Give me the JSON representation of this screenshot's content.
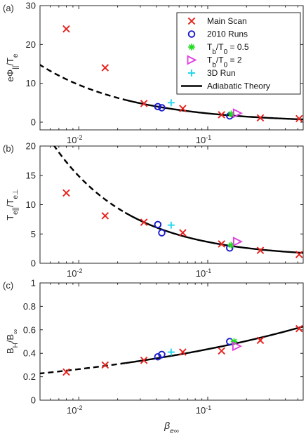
{
  "chart_data": [
    {
      "type": "scatter",
      "panel_label": "(a)",
      "ylabel": "eΦ||/Te",
      "xscale": "log",
      "xlim": [
        0.005,
        0.55
      ],
      "ylim": [
        -2,
        30
      ],
      "yticks": [
        "0",
        "10",
        "20",
        "30"
      ],
      "xticks": [
        "10^-2",
        "10^-1"
      ],
      "legend": {
        "position": "top-right",
        "entries": [
          {
            "label": "Main Scan",
            "marker": "x",
            "color": "#e8211c"
          },
          {
            "label": "2010 Runs",
            "marker": "o",
            "color": "#1a1acc"
          },
          {
            "label": "Tb/T0 = 0.5",
            "marker": "*",
            "color": "#22dd22"
          },
          {
            "label": "Tb/T0 = 2",
            "marker": ">",
            "color": "#e040e0"
          },
          {
            "label": "3D Run",
            "marker": "+",
            "color": "#20d8ee"
          },
          {
            "label": "Adiabatic Theory",
            "marker": "line",
            "color": "#000000"
          }
        ]
      },
      "series": [
        {
          "name": "Main Scan",
          "x": [
            0.008,
            0.016,
            0.032,
            0.064,
            0.128,
            0.256,
            0.512
          ],
          "y": [
            24,
            14,
            4.8,
            3.5,
            1.9,
            1.1,
            0.9
          ]
        },
        {
          "name": "2010 Runs",
          "x": [
            0.041,
            0.044,
            0.148
          ],
          "y": [
            4.0,
            3.7,
            1.6
          ]
        },
        {
          "name": "Tb/T0 = 0.5",
          "x": [
            0.152
          ],
          "y": [
            2.1
          ]
        },
        {
          "name": "Tb/T0 = 2",
          "x": [
            0.17
          ],
          "y": [
            2.3
          ]
        },
        {
          "name": "3D Run",
          "x": [
            0.052
          ],
          "y": [
            5.0
          ]
        },
        {
          "name": "Adiabatic Theory",
          "fn": "phi"
        }
      ]
    },
    {
      "type": "scatter",
      "panel_label": "(b)",
      "ylabel": "Te||/Te⊥",
      "xscale": "log",
      "xlim": [
        0.005,
        0.55
      ],
      "ylim": [
        0,
        20
      ],
      "yticks": [
        "0",
        "5",
        "10",
        "15",
        "20"
      ],
      "xticks": [
        "10^-2",
        "10^-1"
      ],
      "series": [
        {
          "name": "Main Scan",
          "x": [
            0.008,
            0.016,
            0.032,
            0.064,
            0.128,
            0.256,
            0.512
          ],
          "y": [
            12,
            8.1,
            7.0,
            5.2,
            3.3,
            2.2,
            1.5
          ]
        },
        {
          "name": "2010 Runs",
          "x": [
            0.041,
            0.044,
            0.148
          ],
          "y": [
            6.6,
            5.2,
            2.6
          ]
        },
        {
          "name": "Tb/T0 = 0.5",
          "x": [
            0.152
          ],
          "y": [
            3.1
          ]
        },
        {
          "name": "Tb/T0 = 2",
          "x": [
            0.17
          ],
          "y": [
            3.7
          ]
        },
        {
          "name": "3D Run",
          "x": [
            0.052
          ],
          "y": [
            6.5
          ]
        },
        {
          "name": "Adiabatic Theory",
          "fn": "anis"
        }
      ]
    },
    {
      "type": "scatter",
      "panel_label": "(c)",
      "ylabel": "BH/B∞",
      "xlabel": "βe∞",
      "xscale": "log",
      "xlim": [
        0.005,
        0.55
      ],
      "ylim": [
        0,
        1
      ],
      "yticks": [
        "0",
        "0.2",
        "0.4",
        "0.6",
        "0.8",
        "1"
      ],
      "xticks": [
        "10^-2",
        "10^-1"
      ],
      "series": [
        {
          "name": "Main Scan",
          "x": [
            0.008,
            0.016,
            0.032,
            0.064,
            0.128,
            0.256,
            0.512
          ],
          "y": [
            0.24,
            0.3,
            0.34,
            0.41,
            0.42,
            0.51,
            0.61
          ]
        },
        {
          "name": "2010 Runs",
          "x": [
            0.041,
            0.044,
            0.148
          ],
          "y": [
            0.37,
            0.39,
            0.5
          ]
        },
        {
          "name": "Tb/T0 = 0.5",
          "x": [
            0.16
          ],
          "y": [
            0.5
          ]
        },
        {
          "name": "Tb/T0 = 2",
          "x": [
            0.168
          ],
          "y": [
            0.46
          ]
        },
        {
          "name": "3D Run",
          "x": [
            0.052
          ],
          "y": [
            0.41
          ]
        },
        {
          "name": "Adiabatic Theory",
          "fn": "field"
        }
      ]
    }
  ]
}
